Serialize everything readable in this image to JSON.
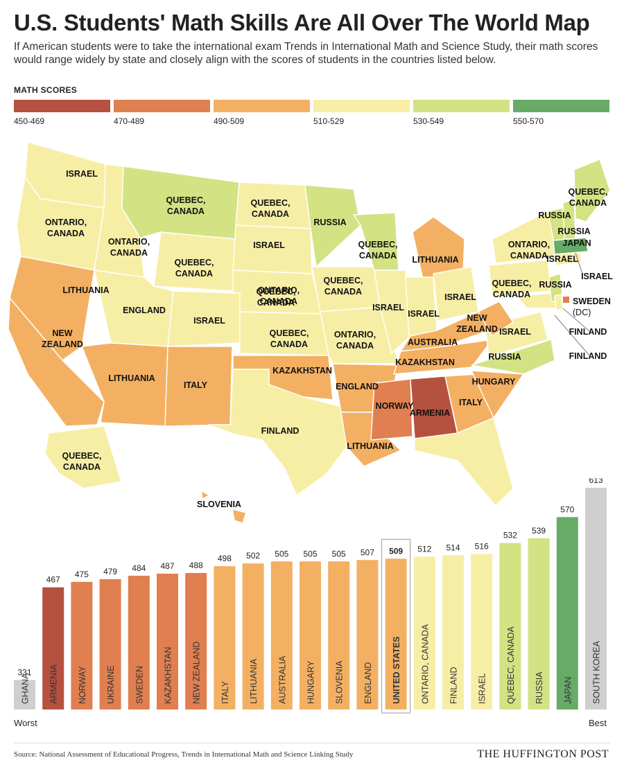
{
  "header": {
    "title": "U.S. Students' Math Skills Are All Over The World Map",
    "subtitle": "If American students were to take the international exam Trends in International Math and Science Study, their math scores would range widely by state and closely align with the scores of students in the countries listed below."
  },
  "legend": {
    "title": "MATH SCORES",
    "bins": [
      {
        "label": "450-469",
        "color": "#b5513f"
      },
      {
        "label": "470-489",
        "color": "#e07f50"
      },
      {
        "label": "490-509",
        "color": "#f3b063"
      },
      {
        "label": "510-529",
        "color": "#f7eea6"
      },
      {
        "label": "530-549",
        "color": "#d3e283"
      },
      {
        "label": "550-570",
        "color": "#67ab67"
      }
    ]
  },
  "map": {
    "dc_label": "SWEDEN",
    "dc_sub": "(DC)",
    "state_labels": [
      "ISRAEL",
      "ONTARIO, CANADA",
      "ONTARIO, CANADA",
      "QUEBEC, CANADA",
      "QUEBEC, CANADA",
      "LITHUANIA",
      "NEW ZEALAND",
      "LITHUANIA",
      "ENGLAND",
      "ISRAEL",
      "ITALY",
      "QUEBEC, CANADA",
      "QUEBEC, CANADA",
      "ISRAEL",
      "ONTARIO, CANADA",
      "QUEBEC, CANADA",
      "KAZAKHSTAN",
      "FINLAND",
      "RUSSIA",
      "QUEBEC, CANADA",
      "QUEBEC, CANADA",
      "ISRAEL",
      "ONTARIO, CANADA",
      "ENGLAND",
      "LITHUANIA",
      "LITHUANIA",
      "ISRAEL",
      "ISRAEL",
      "AUSTRALIA",
      "KAZAKHSTAN",
      "NORWAY",
      "ARMENIA",
      "ITALY",
      "HUNGARY",
      "NEW ZEALAND",
      "RUSSIA",
      "ISRAEL",
      "ONTARIO, CANADA",
      "QUEBEC, CANADA",
      "QUEBEC, CANADA",
      "RUSSIA",
      "RUSSIA",
      "JAPAN",
      "ISRAEL",
      "ISRAEL",
      "RUSSIA",
      "FINLAND",
      "FINLAND",
      "QUEBEC, CANADA",
      "SLOVENIA"
    ]
  },
  "chart_data": {
    "type": "bar",
    "categories": [
      "GHANA",
      "ARMENIA",
      "NORWAY",
      "UKRAINE",
      "SWEDEN",
      "KAZAKHSTAN",
      "NEW ZEALAND",
      "ITALY",
      "LITHUANIA",
      "AUSTRALIA",
      "HUNGARY",
      "SLOVENIA",
      "ENGLAND",
      "UNITED STATES",
      "ONTARIO, CANADA",
      "FINLAND",
      "ISRAEL",
      "QUEBEC, CANADA",
      "RUSSIA",
      "JAPAN",
      "SOUTH KOREA"
    ],
    "values": [
      331,
      467,
      475,
      479,
      484,
      487,
      488,
      498,
      502,
      505,
      505,
      505,
      507,
      509,
      512,
      514,
      516,
      532,
      539,
      570,
      613
    ],
    "colors": [
      "#cfcfcf",
      "#b5513f",
      "#e07f50",
      "#e07f50",
      "#e07f50",
      "#e07f50",
      "#e07f50",
      "#f3b063",
      "#f3b063",
      "#f3b063",
      "#f3b063",
      "#f3b063",
      "#f3b063",
      "#f3b063",
      "#f7eea6",
      "#f7eea6",
      "#f7eea6",
      "#d3e283",
      "#d3e283",
      "#67ab67",
      "#cfcfcf"
    ],
    "highlight": "UNITED STATES",
    "xlabel": "",
    "ylabel": "",
    "left_end_label": "Worst",
    "right_end_label": "Best"
  },
  "footer": {
    "source": "Source: National Assessment of Educational Progress, Trends in International Math and Science Linking Study",
    "brand": "THE HUFFINGTON POST"
  }
}
